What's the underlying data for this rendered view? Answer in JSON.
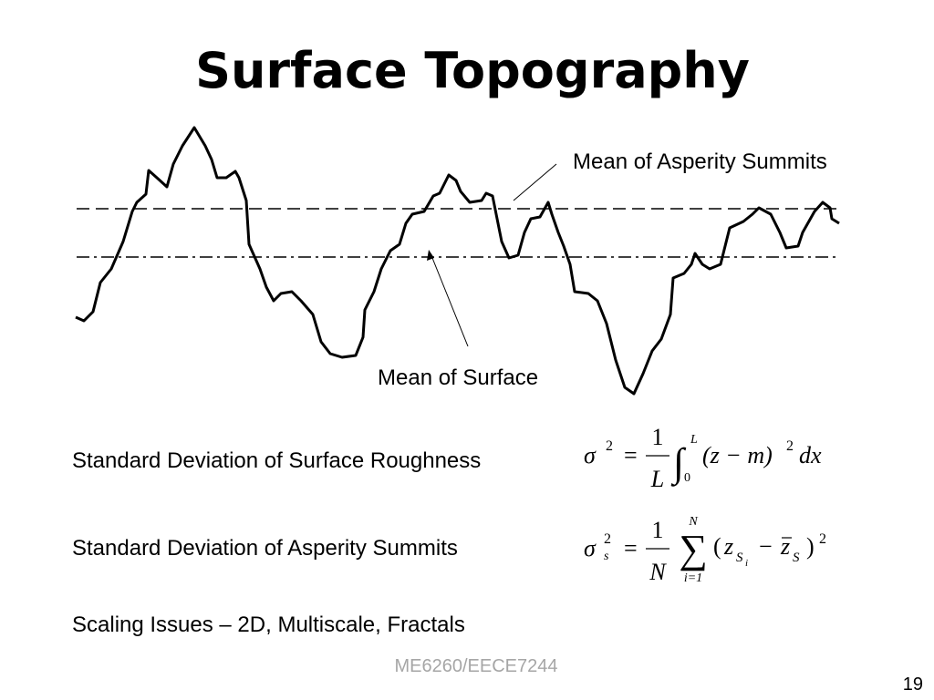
{
  "slide": {
    "title": "Surface Topography",
    "labels": {
      "asperity": "Mean of Asperity Summits",
      "surface": "Mean of Surface"
    },
    "items": [
      "Standard Deviation of Surface Roughness",
      "Standard Deviation of Asperity Summits",
      "Scaling Issues – 2D, Multiscale, Fractals"
    ],
    "eq1": {
      "lhs": "σ",
      "lhs_sup": "2",
      "eq": "=",
      "num": "1",
      "den": "L",
      "op": "∫",
      "upper": "L",
      "lower": "0",
      "body": "(z − m)",
      "body_sup": "2",
      "tail": "dx"
    },
    "eq2": {
      "lhs": "σ",
      "lhs_sub": "s",
      "lhs_sup": "2",
      "eq": "=",
      "num": "1",
      "den": "N",
      "op": "∑",
      "upper": "N",
      "lower": "i=1",
      "open": "(",
      "z1": "z",
      "z1_sub": "S",
      "z1_subsub": "i",
      "minus": "−",
      "z2": "z",
      "z2_sub": "S",
      "close": ")",
      "sup": "2"
    },
    "footer": "ME6260/EECE7244",
    "page": "19"
  }
}
